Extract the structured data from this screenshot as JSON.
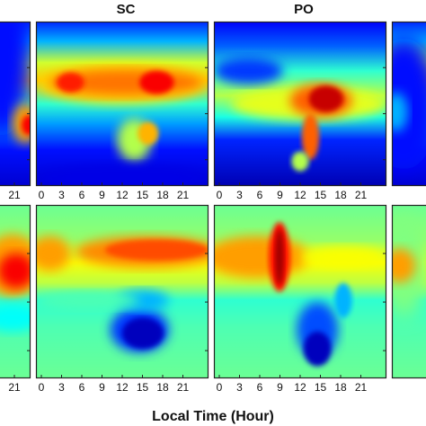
{
  "chart_data": {
    "type": "heatmap",
    "colormap": "jet",
    "xlabel": "Local Time (Hour)",
    "x_tick_labels": [
      "0",
      "3",
      "6",
      "9",
      "12",
      "15",
      "18",
      "21"
    ],
    "x_range": [
      0,
      24
    ],
    "grid": false,
    "legend": "none",
    "panels": [
      {
        "row": "top",
        "column_title": "",
        "x_tick_labels_shown": [
          "21"
        ],
        "partial": "left-edge"
      },
      {
        "row": "top",
        "column_title": "SC",
        "x_tick_labels_shown": [
          "0",
          "3",
          "6",
          "9",
          "12",
          "15",
          "18",
          "21"
        ]
      },
      {
        "row": "top",
        "column_title": "PO",
        "x_tick_labels_shown": [
          "0",
          "3",
          "6",
          "9",
          "12",
          "15",
          "18",
          "21"
        ]
      },
      {
        "row": "top",
        "column_title": "",
        "x_tick_labels_shown": [],
        "partial": "right-edge"
      },
      {
        "row": "bottom",
        "column_title": "",
        "x_tick_labels_shown": [
          "21"
        ],
        "partial": "left-edge"
      },
      {
        "row": "bottom",
        "column_title": "",
        "x_tick_labels_shown": [
          "0",
          "3",
          "6",
          "9",
          "12",
          "15",
          "18",
          "21"
        ]
      },
      {
        "row": "bottom",
        "column_title": "",
        "x_tick_labels_shown": [
          "0",
          "3",
          "6",
          "9",
          "12",
          "15",
          "18",
          "21"
        ]
      },
      {
        "row": "bottom",
        "column_title": "",
        "x_tick_labels_shown": [],
        "partial": "right-edge"
      }
    ],
    "column_titles": [
      "SC",
      "PO"
    ]
  }
}
